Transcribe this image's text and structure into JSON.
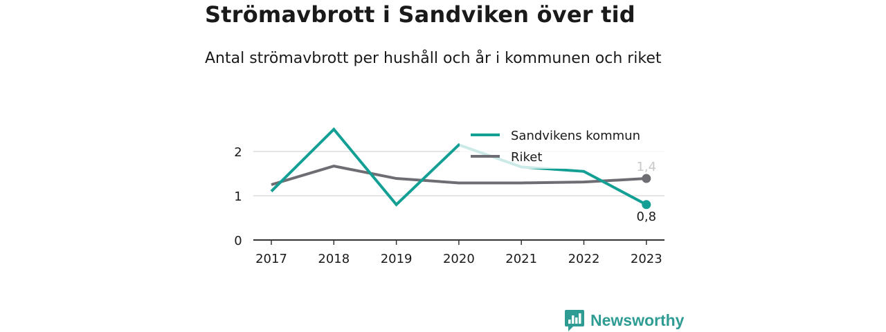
{
  "title": "Strömavbrott i Sandviken över tid",
  "subtitle": "Antal strömavbrott per hushåll och år i kommunen och riket",
  "brand": "Newsworthy",
  "colors": {
    "series1": "#139f94",
    "series2": "#6e6d73",
    "grid": "#dcdcdc",
    "axis": "#333333"
  },
  "chart_data": {
    "type": "line",
    "categories": [
      "2017",
      "2018",
      "2019",
      "2020",
      "2021",
      "2022",
      "2023"
    ],
    "series": [
      {
        "name": "Sandvikens kommun",
        "values": [
          1.1,
          2.5,
          0.8,
          2.15,
          1.65,
          1.55,
          0.8
        ],
        "end_label": "0,8"
      },
      {
        "name": "Riket",
        "values": [
          1.25,
          1.67,
          1.39,
          1.29,
          1.29,
          1.31,
          1.39
        ],
        "end_label": "1,4"
      }
    ],
    "yticks": [
      "0",
      "1",
      "2"
    ],
    "ylim": [
      0,
      2.6
    ],
    "grid": true,
    "legend_position": "top-right"
  }
}
